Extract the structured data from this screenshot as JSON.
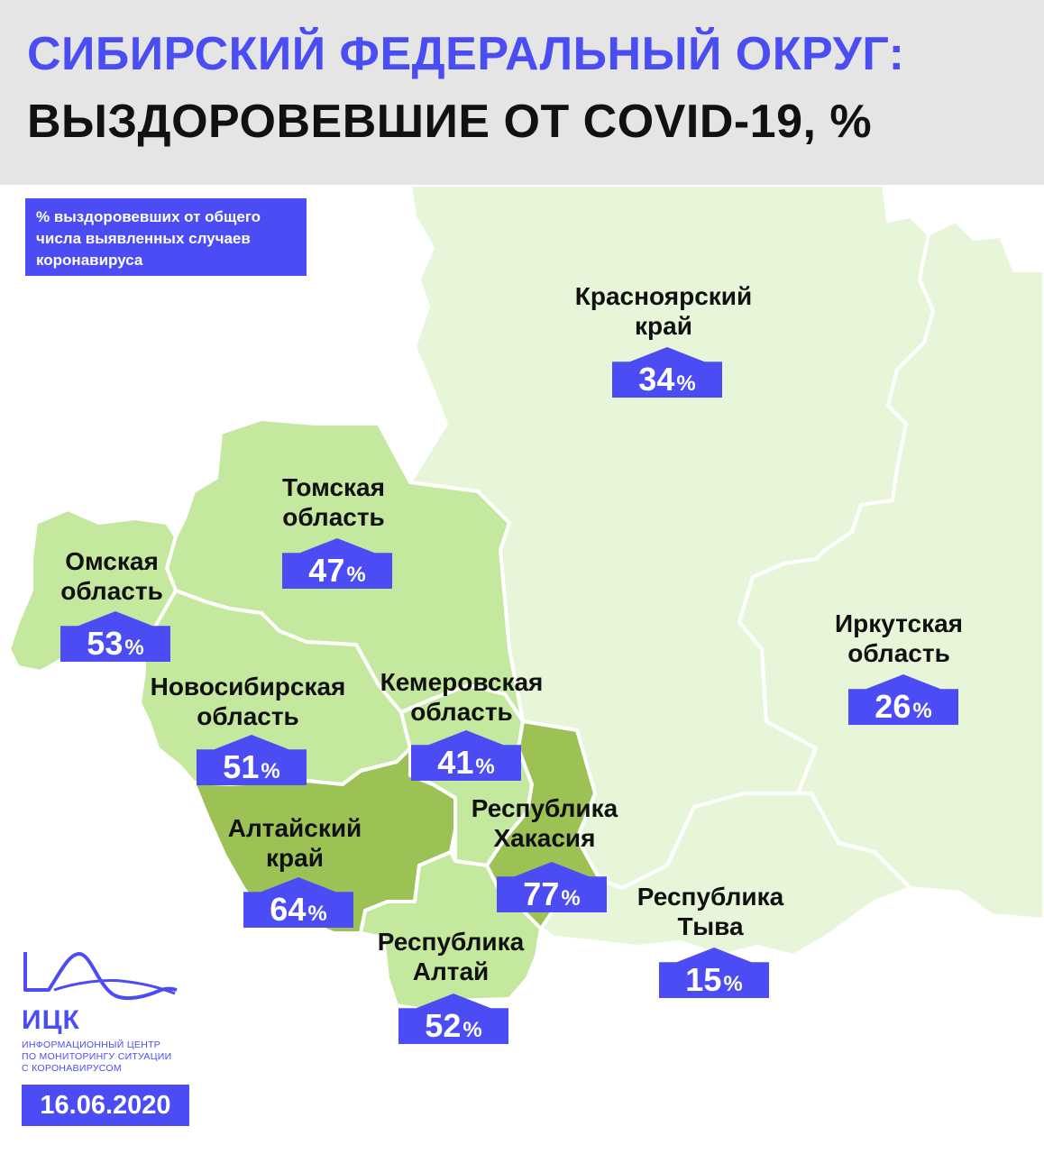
{
  "title": {
    "line1": "СИБИРСКИЙ ФЕДЕРАЛЬНЫЙ ОКРУГ:",
    "line2": "ВЫЗДОРОВЕВШИЕ ОТ COVID-19, %"
  },
  "legend": {
    "lines": [
      "% выздоровевших от общего",
      "числа выявленных случаев",
      "коронавируса"
    ]
  },
  "colors": {
    "accent": "#4c4cf5",
    "light_region": "#e7f6d9",
    "medium_region": "#c5e89f",
    "dark_region": "#9cc256",
    "header_bg": "#e5e5e5"
  },
  "regions": [
    {
      "name_line1": "Красноярский",
      "name_line2": "край",
      "value": "34",
      "unit": "%"
    },
    {
      "name_line1": "Иркутская",
      "name_line2": "область",
      "value": "26",
      "unit": "%"
    },
    {
      "name_line1": "Томская",
      "name_line2": "область",
      "value": "47",
      "unit": "%"
    },
    {
      "name_line1": "Омская",
      "name_line2": "область",
      "value": "53",
      "unit": "%"
    },
    {
      "name_line1": "Новосибирская",
      "name_line2": "область",
      "value": "51",
      "unit": "%"
    },
    {
      "name_line1": "Кемеровская",
      "name_line2": "область",
      "value": "41",
      "unit": "%"
    },
    {
      "name_line1": "Алтайский",
      "name_line2": "край",
      "value": "64",
      "unit": "%"
    },
    {
      "name_line1": "Республика",
      "name_line2": "Хакасия",
      "value": "77",
      "unit": "%"
    },
    {
      "name_line1": "Республика",
      "name_line2": "Алтай",
      "value": "52",
      "unit": "%"
    },
    {
      "name_line1": "Республика",
      "name_line2": "Тыва",
      "value": "15",
      "unit": "%"
    }
  ],
  "logo": {
    "name": "ИЦК",
    "desc_lines": [
      "ИНФОРМАЦИОННЫЙ ЦЕНТР",
      "ПО МОНИТОРИНГУ СИТУАЦИИ",
      "С КОРОНАВИРУСОМ"
    ]
  },
  "date": "16.06.2020"
}
